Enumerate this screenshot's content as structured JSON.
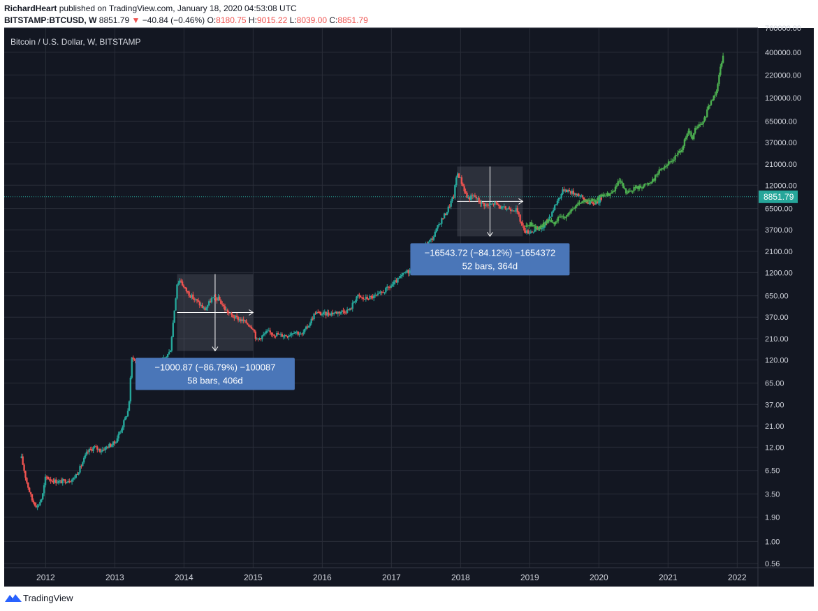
{
  "header": {
    "author": "RichardHeart",
    "published_text": "published on TradingView.com, January 18, 2020 04:53:08 UTC",
    "symbol": "BITSTAMP:BTCUSD, W",
    "last": "8851.79",
    "change_arrow": "▼",
    "change": "−40.84 (−0.46%)",
    "o_label": "O:",
    "o_value": "8180.75",
    "h_label": "H:",
    "h_value": "9015.22",
    "l_label": "L:",
    "l_value": "8039.00",
    "c_label": "C:",
    "c_value": "8851.79"
  },
  "footer": {
    "brand": "TradingView"
  },
  "chart_data": {
    "type": "candlestick",
    "title": "Bitcoin / U.S. Dollar, W, BITSTAMP",
    "y_scale": "log",
    "ylim": [
      0.5,
      760000
    ],
    "xlim": [
      2011.4,
      2022.3
    ],
    "y_tick_labels": [
      "760000.00",
      "400000.00",
      "220000.00",
      "120000.00",
      "65000.00",
      "37000.00",
      "21000.00",
      "12000.00",
      "6500.00",
      "3700.00",
      "2100.00",
      "1200.00",
      "650.00",
      "370.00",
      "210.00",
      "120.00",
      "65.00",
      "37.00",
      "21.00",
      "12.00",
      "6.50",
      "3.50",
      "1.90",
      "1.00",
      "0.56"
    ],
    "x_tick_labels": [
      "2012",
      "2013",
      "2014",
      "2015",
      "2016",
      "2017",
      "2018",
      "2019",
      "2020",
      "2021",
      "2022"
    ],
    "current_price_label": "8851.79",
    "current_price": 8851.79,
    "colors": {
      "up": "#26a69a",
      "down": "#ef5350",
      "projection": "#4caf50",
      "price_line": "#26a69a",
      "measure_box": "#4a76b8",
      "accent_label": "#26a69a"
    },
    "price_path": [
      [
        2011.65,
        9
      ],
      [
        2011.72,
        5
      ],
      [
        2011.8,
        3
      ],
      [
        2011.88,
        2.5
      ],
      [
        2011.95,
        3.2
      ],
      [
        2012.0,
        5.5
      ],
      [
        2012.1,
        5.0
      ],
      [
        2012.2,
        4.8
      ],
      [
        2012.3,
        5.0
      ],
      [
        2012.4,
        5.2
      ],
      [
        2012.5,
        7.0
      ],
      [
        2012.6,
        10.5
      ],
      [
        2012.7,
        12.0
      ],
      [
        2012.8,
        11.0
      ],
      [
        2012.9,
        12.3
      ],
      [
        2013.0,
        13.5
      ],
      [
        2013.1,
        20
      ],
      [
        2013.2,
        33
      ],
      [
        2013.25,
        140
      ],
      [
        2013.3,
        110
      ],
      [
        2013.4,
        100
      ],
      [
        2013.5,
        80
      ],
      [
        2013.6,
        100
      ],
      [
        2013.7,
        120
      ],
      [
        2013.8,
        150
      ],
      [
        2013.9,
        900
      ],
      [
        2013.95,
        1000
      ],
      [
        2014.0,
        800
      ],
      [
        2014.1,
        650
      ],
      [
        2014.2,
        550
      ],
      [
        2014.3,
        450
      ],
      [
        2014.4,
        600
      ],
      [
        2014.5,
        600
      ],
      [
        2014.6,
        450
      ],
      [
        2014.7,
        380
      ],
      [
        2014.8,
        350
      ],
      [
        2014.9,
        320
      ],
      [
        2015.0,
        280
      ],
      [
        2015.05,
        200
      ],
      [
        2015.2,
        250
      ],
      [
        2015.4,
        230
      ],
      [
        2015.5,
        230
      ],
      [
        2015.6,
        260
      ],
      [
        2015.7,
        230
      ],
      [
        2015.8,
        300
      ],
      [
        2015.9,
        420
      ],
      [
        2016.0,
        400
      ],
      [
        2016.2,
        420
      ],
      [
        2016.4,
        450
      ],
      [
        2016.5,
        650
      ],
      [
        2016.6,
        600
      ],
      [
        2016.8,
        650
      ],
      [
        2017.0,
        850
      ],
      [
        2017.1,
        1000
      ],
      [
        2017.2,
        1200
      ],
      [
        2017.3,
        1300
      ],
      [
        2017.4,
        1800
      ],
      [
        2017.5,
        2500
      ],
      [
        2017.6,
        3000
      ],
      [
        2017.7,
        4500
      ],
      [
        2017.8,
        6000
      ],
      [
        2017.9,
        9000
      ],
      [
        2017.95,
        17000
      ],
      [
        2018.0,
        14000
      ],
      [
        2018.1,
        8500
      ],
      [
        2018.2,
        9000
      ],
      [
        2018.3,
        7500
      ],
      [
        2018.4,
        7000
      ],
      [
        2018.5,
        7500
      ],
      [
        2018.6,
        6500
      ],
      [
        2018.7,
        6500
      ],
      [
        2018.8,
        6400
      ],
      [
        2018.9,
        4000
      ],
      [
        2018.95,
        3500
      ],
      [
        2019.1,
        3700
      ],
      [
        2019.2,
        4000
      ],
      [
        2019.3,
        5500
      ],
      [
        2019.4,
        8000
      ],
      [
        2019.5,
        11000
      ],
      [
        2019.6,
        10000
      ],
      [
        2019.7,
        9500
      ],
      [
        2019.8,
        8000
      ],
      [
        2019.9,
        7300
      ],
      [
        2020.0,
        8000
      ],
      [
        2020.05,
        8851.79
      ]
    ],
    "projection_path": [
      [
        2018.95,
        4000
      ],
      [
        2019.0,
        4400
      ],
      [
        2019.1,
        3900
      ],
      [
        2019.2,
        4300
      ],
      [
        2019.3,
        4800
      ],
      [
        2019.35,
        4200
      ],
      [
        2019.4,
        4900
      ],
      [
        2019.5,
        5300
      ],
      [
        2019.6,
        6000
      ],
      [
        2019.7,
        7500
      ],
      [
        2019.8,
        8000
      ],
      [
        2019.9,
        7800
      ],
      [
        2020.0,
        8800
      ],
      [
        2020.1,
        9200
      ],
      [
        2020.2,
        10000
      ],
      [
        2020.3,
        13500
      ],
      [
        2020.4,
        9500
      ],
      [
        2020.5,
        11000
      ],
      [
        2020.6,
        11500
      ],
      [
        2020.7,
        12500
      ],
      [
        2020.8,
        14500
      ],
      [
        2020.9,
        19000
      ],
      [
        2021.0,
        21000
      ],
      [
        2021.1,
        25000
      ],
      [
        2021.2,
        32000
      ],
      [
        2021.3,
        50000
      ],
      [
        2021.35,
        40000
      ],
      [
        2021.4,
        55000
      ],
      [
        2021.5,
        60000
      ],
      [
        2021.6,
        100000
      ],
      [
        2021.65,
        120000
      ],
      [
        2021.7,
        150000
      ],
      [
        2021.75,
        250000
      ],
      [
        2021.8,
        400000
      ]
    ],
    "annotations": [
      {
        "line1": "−1000.87 (−86.79%) −100087",
        "line2": "58 bars, 406d",
        "x_start": 2013.9,
        "x_end": 2015.0,
        "y_high": 1153,
        "y_low": 152
      },
      {
        "line1": "−16543.72 (−84.12%) −1654372",
        "line2": "52 bars, 364d",
        "x_start": 2017.95,
        "x_end": 2018.9,
        "y_high": 19666,
        "y_low": 3122
      }
    ]
  }
}
